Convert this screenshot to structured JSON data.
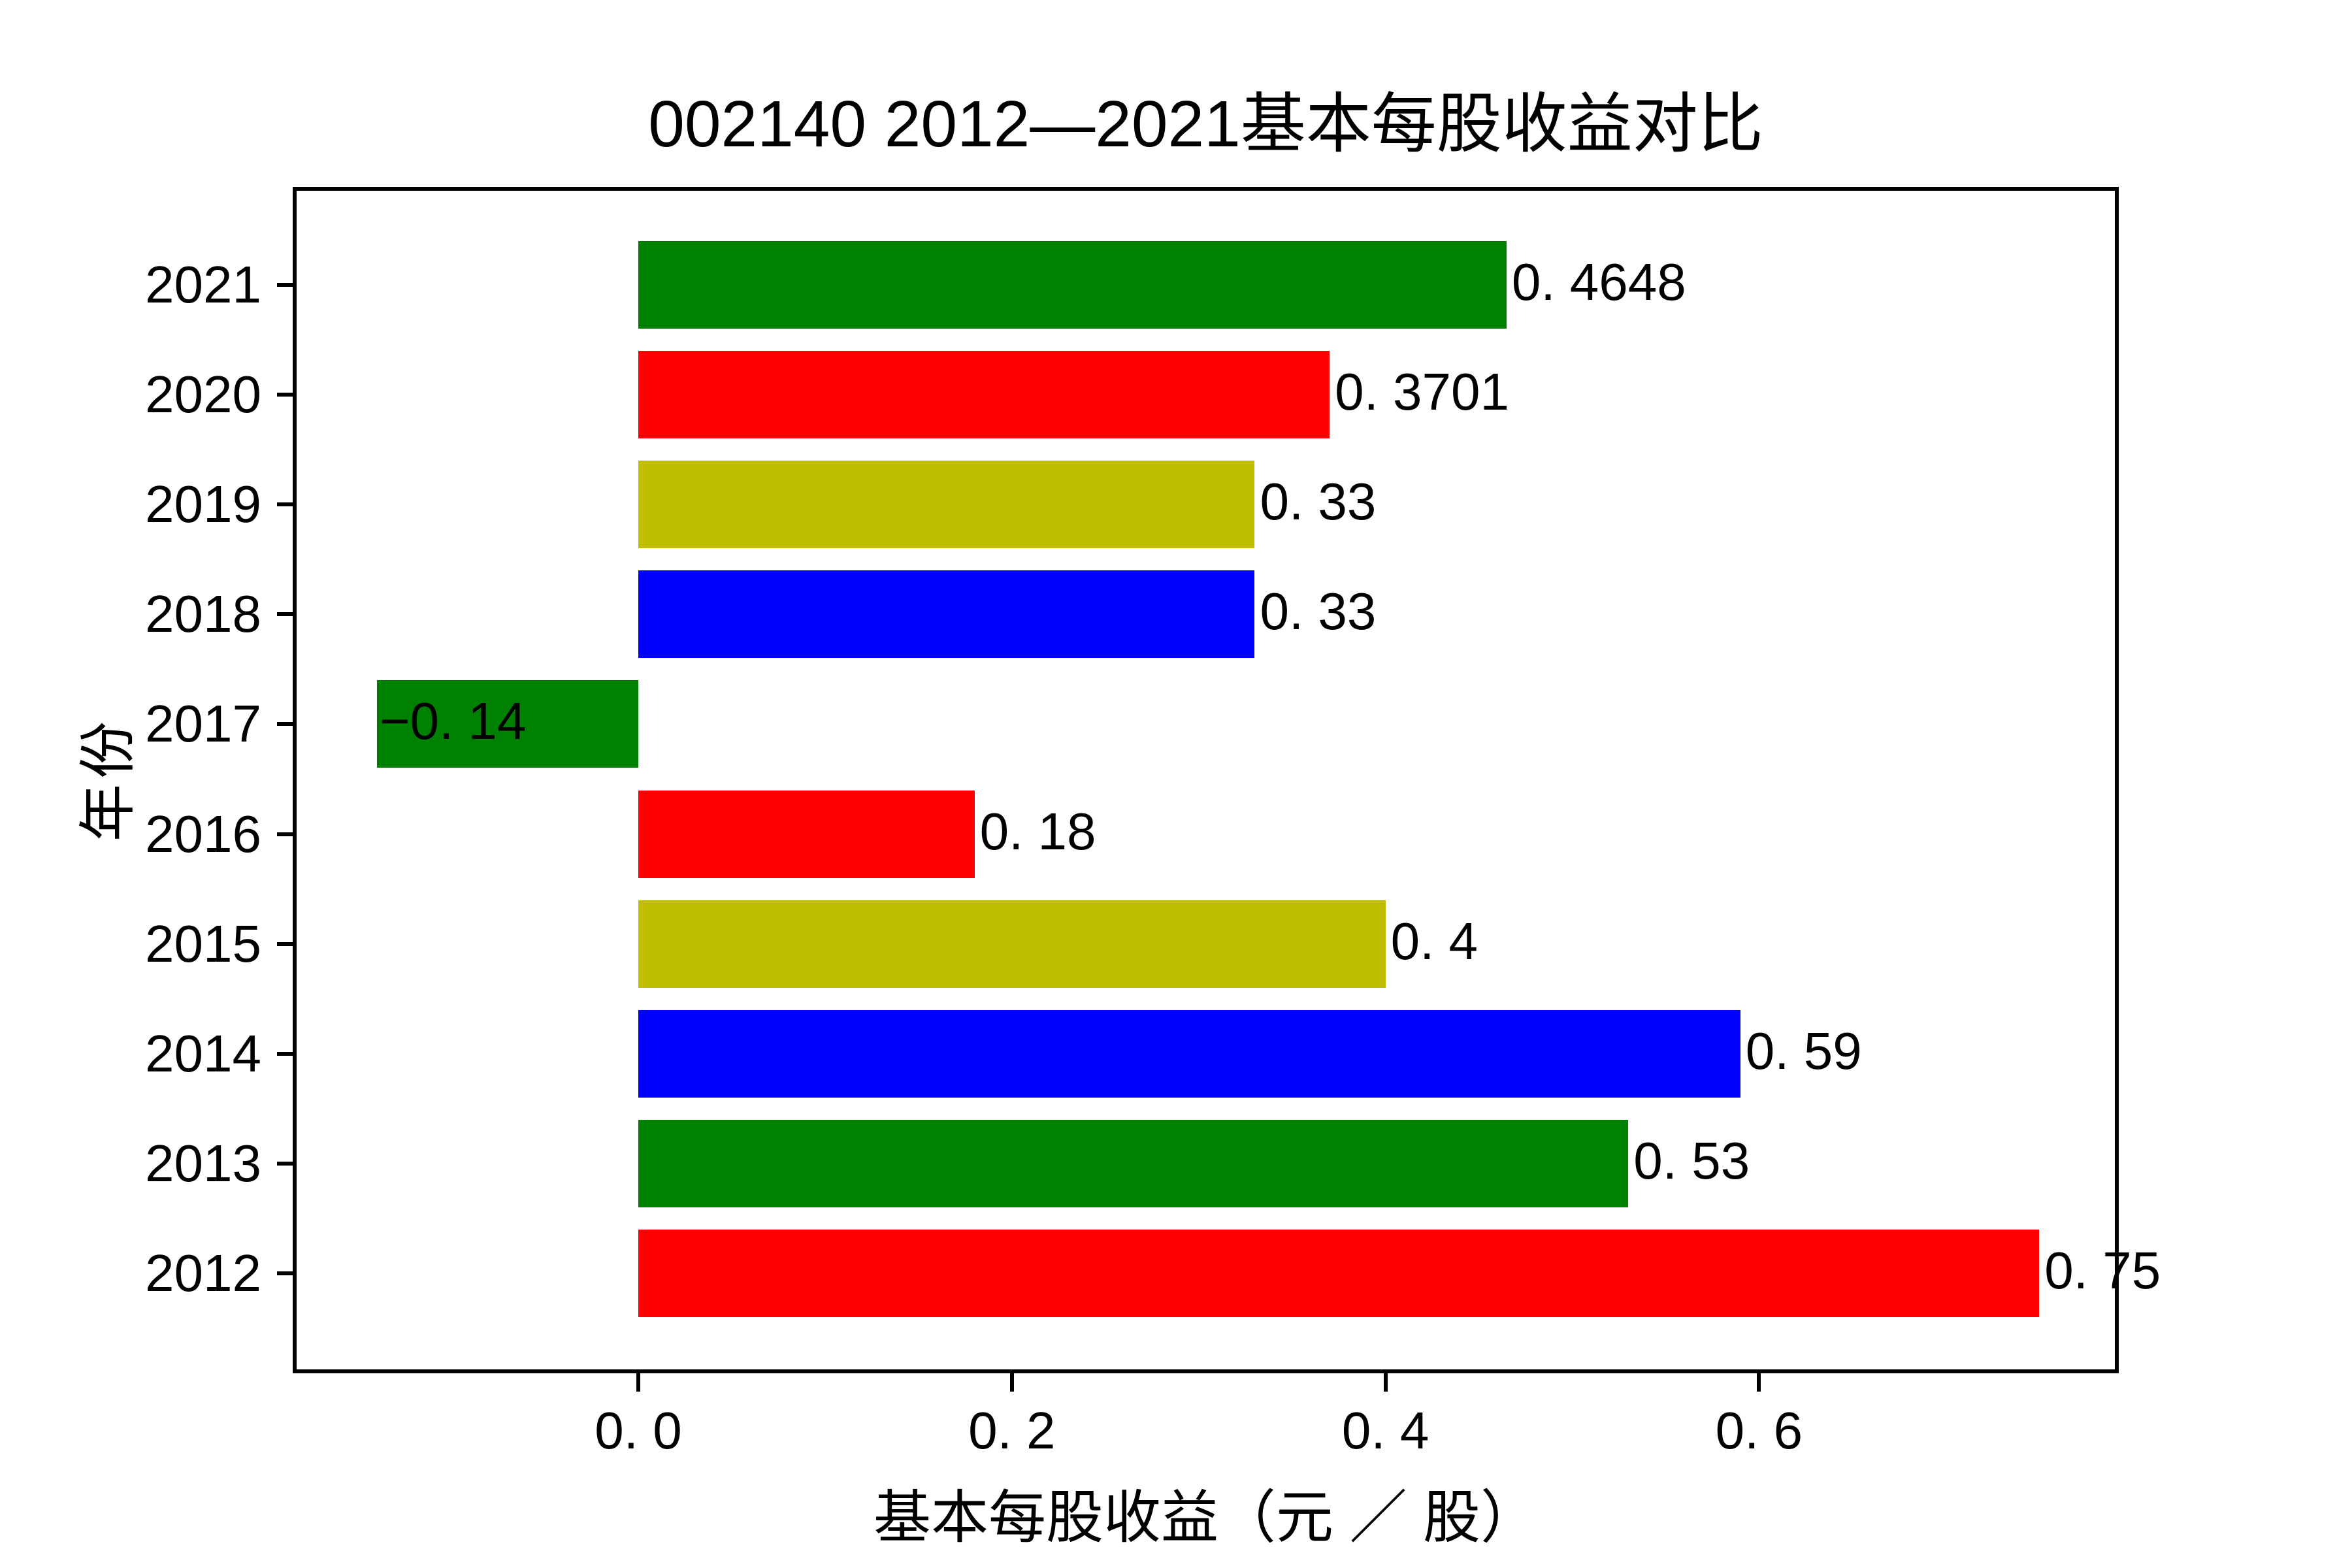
{
  "title": "002140 2012—2021基本每股收益对比",
  "chart_data": {
    "type": "bar",
    "orientation": "horizontal",
    "title": "002140 2012—2021基本每股收益对比",
    "xlabel": "基本每股收益（元 ／ 股）",
    "ylabel": "年份",
    "categories": [
      "2021",
      "2020",
      "2019",
      "2018",
      "2017",
      "2016",
      "2015",
      "2014",
      "2013",
      "2012"
    ],
    "values": [
      0.4648,
      0.3701,
      0.33,
      0.33,
      -0.14,
      0.18,
      0.4,
      0.59,
      0.53,
      0.75
    ],
    "value_labels": [
      "0. 4648",
      "0. 3701",
      "0. 33",
      "0. 33",
      "−0. 14",
      "0. 18",
      "0. 4",
      "0. 59",
      "0. 53",
      "0. 75"
    ],
    "bar_colors": [
      "#008000",
      "#FF0000",
      "#BFBF00",
      "#0000FF",
      "#008000",
      "#FF0000",
      "#BFBF00",
      "#0000FF",
      "#008000",
      "#FF0000"
    ],
    "xlim": [
      -0.1845,
      0.7945
    ],
    "x_ticks": [
      0.0,
      0.2,
      0.4,
      0.6
    ],
    "x_tick_labels": [
      "0. 0",
      "0. 2",
      "0. 4",
      "0. 6"
    ],
    "grid": false,
    "legend": null
  },
  "colors": {
    "background": "#FFFFFF",
    "frame": "#000000",
    "text": "#000000",
    "green": "#008000",
    "red": "#FF0000",
    "yellow": "#BFBF00",
    "blue": "#0000FF"
  }
}
